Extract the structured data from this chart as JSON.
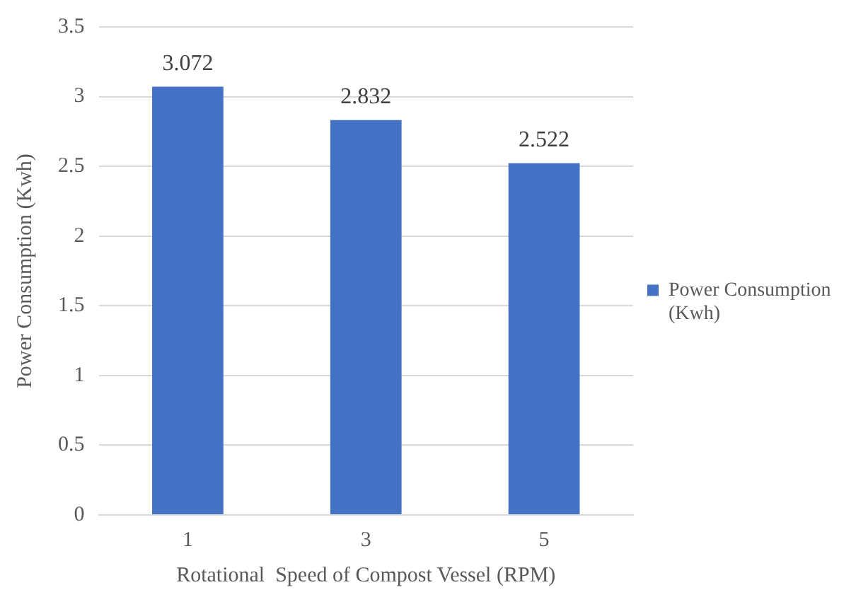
{
  "chart_data": {
    "type": "bar",
    "xlabel": "Rotational  Speed of Compost Vessel (RPM)",
    "ylabel": "Power Consumption (Kwh)",
    "categories": [
      "1",
      "3",
      "5"
    ],
    "series": [
      {
        "name": "Power Consumption (Kwh)",
        "color": "#4472c4",
        "values": [
          3.072,
          2.832,
          2.522
        ]
      }
    ],
    "ylim": [
      0,
      3.5
    ],
    "yticks": [
      0,
      0.5,
      1,
      1.5,
      2,
      2.5,
      3,
      3.5
    ],
    "grid": "y",
    "legend": "right",
    "data_labels": true
  }
}
